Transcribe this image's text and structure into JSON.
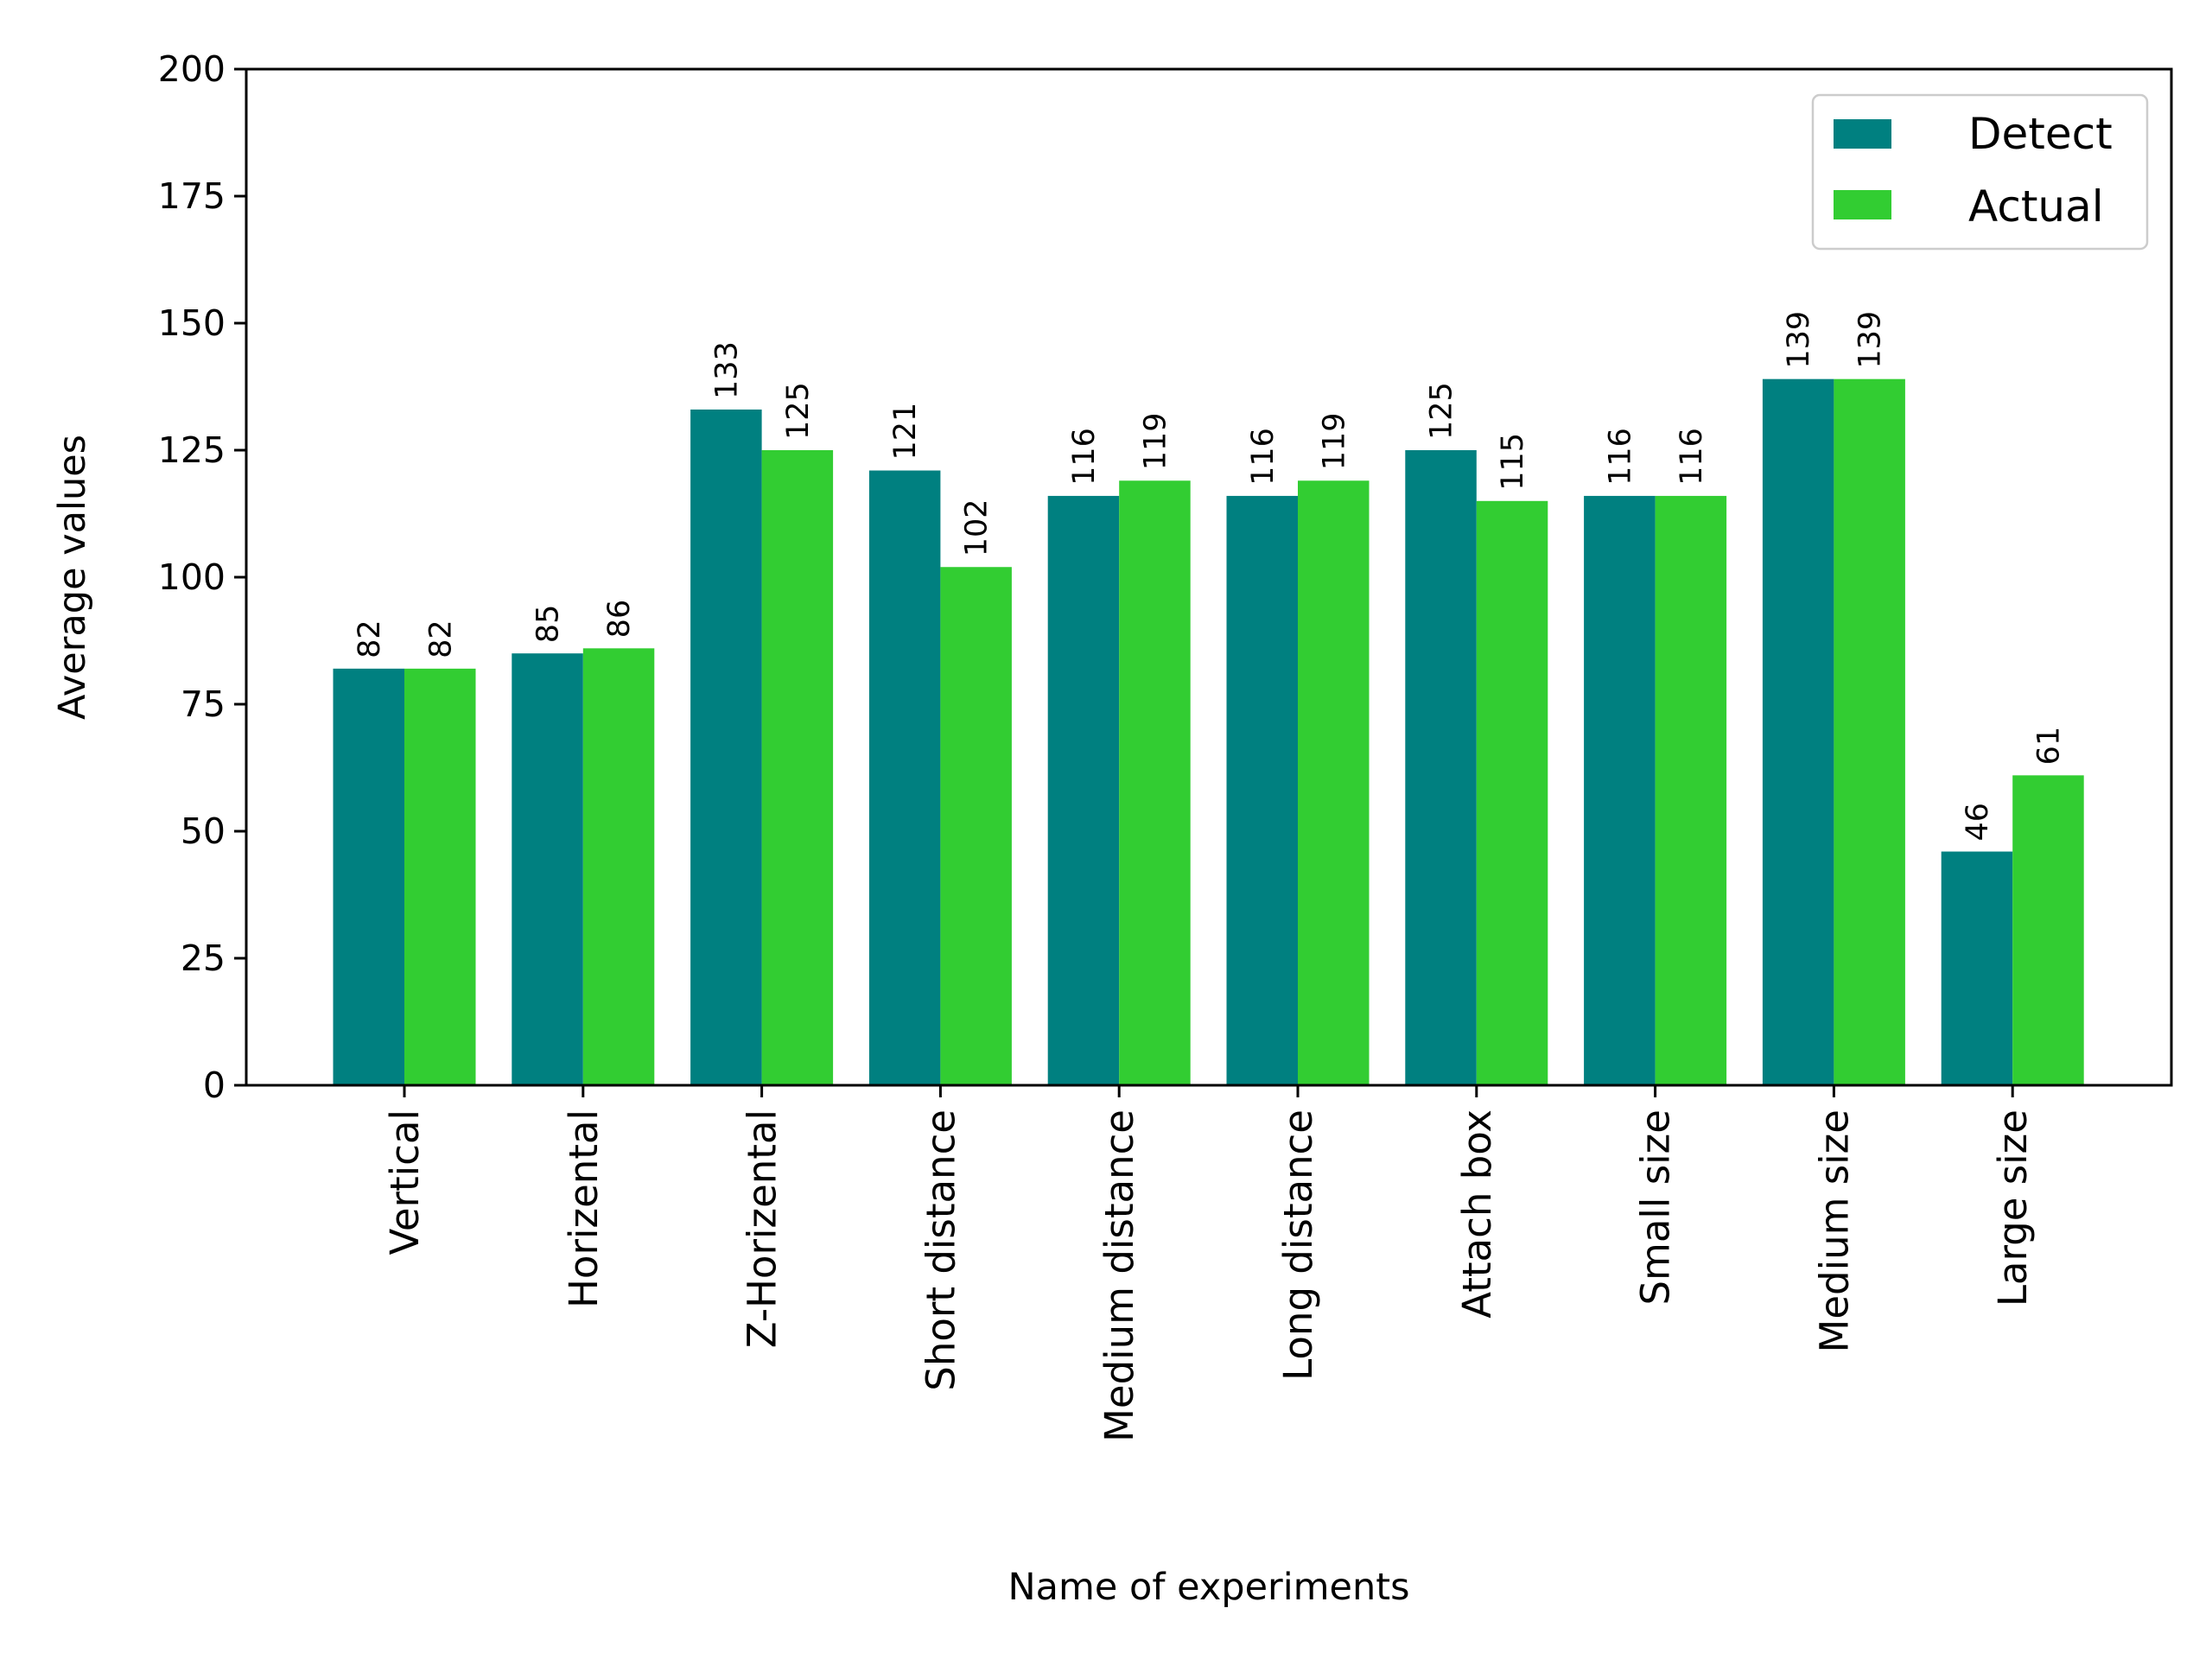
{
  "chart_data": {
    "type": "bar",
    "xlabel": "Name of experiments",
    "ylabel": "Average values",
    "ylim": [
      0,
      200
    ],
    "yticks": [
      0,
      25,
      50,
      75,
      100,
      125,
      150,
      175,
      200
    ],
    "grid": false,
    "legend_position": "top-right",
    "categories": [
      "Vertical",
      "Horizental",
      "Z-Horizental",
      "Short distance",
      "Medium distance",
      "Long distance",
      "Attach box",
      "Small size",
      "Medium size",
      "Large size"
    ],
    "series": [
      {
        "name": "Detect",
        "color": "#008080",
        "values": [
          82,
          85,
          133,
          121,
          116,
          116,
          125,
          116,
          139,
          46
        ]
      },
      {
        "name": "Actual",
        "color": "#32CD32",
        "values": [
          82,
          86,
          125,
          102,
          119,
          119,
          115,
          116,
          139,
          61
        ]
      }
    ]
  }
}
